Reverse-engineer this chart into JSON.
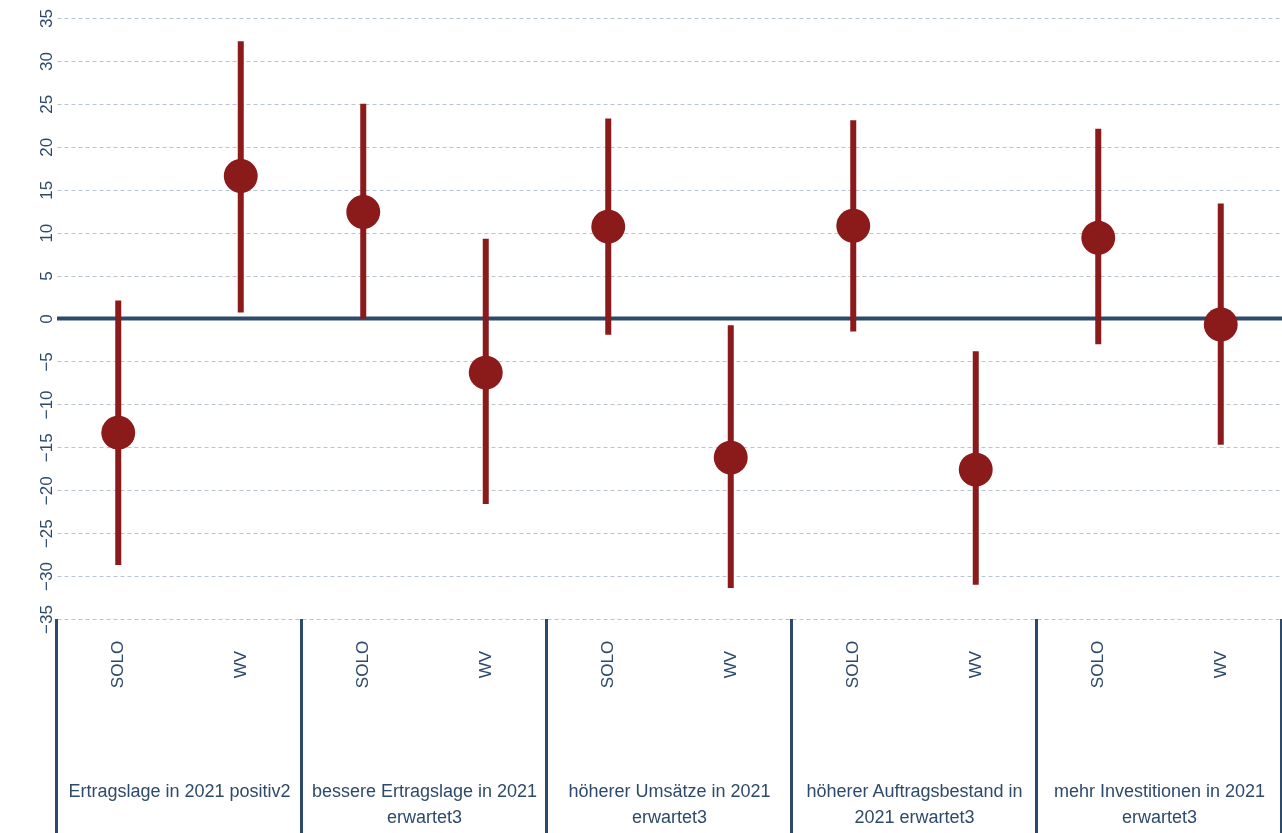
{
  "chart_data": {
    "type": "scatter",
    "categories": [
      "SOLO",
      "WV",
      "SOLO",
      "WV",
      "SOLO",
      "WV",
      "SOLO",
      "WV",
      "SOLO",
      "WV"
    ],
    "series": [
      {
        "color": "#8b1a1a",
        "values": [
          -13.3,
          16.6,
          12.4,
          -6.3,
          10.7,
          -16.2,
          10.8,
          -17.6,
          9.4,
          -0.7
        ],
        "errors": [
          [
            -28.7,
            2.1
          ],
          [
            0.7,
            32.3
          ],
          [
            0,
            25
          ],
          [
            -21.6,
            9.3
          ],
          [
            -1.9,
            23.3
          ],
          [
            -31.4,
            -0.8
          ],
          [
            -1.5,
            23.1
          ],
          [
            -31,
            -3.8
          ],
          [
            -3,
            22.1
          ],
          [
            -14.7,
            13.4
          ]
        ]
      }
    ],
    "ylim": [
      -35,
      35
    ],
    "yticks": [
      -35,
      -30,
      -25,
      -20,
      -15,
      -10,
      -5,
      0,
      5,
      10,
      15,
      20,
      25,
      30,
      35
    ],
    "grid": "y",
    "marker": "circle",
    "ref_lines": [
      {
        "axis": "y",
        "value": 0,
        "color": "#2e4a6b"
      }
    ],
    "annotations": [
      "Ertragslage in 2021 positiv2",
      "bessere Ertragslage in 2021 erwartet3",
      "höherer Umsätze in 2021 erwartet3",
      "höherer Auftragsbestand in 2021 erwartet3",
      "mehr Investitionen in 2021 erwartet3"
    ]
  }
}
